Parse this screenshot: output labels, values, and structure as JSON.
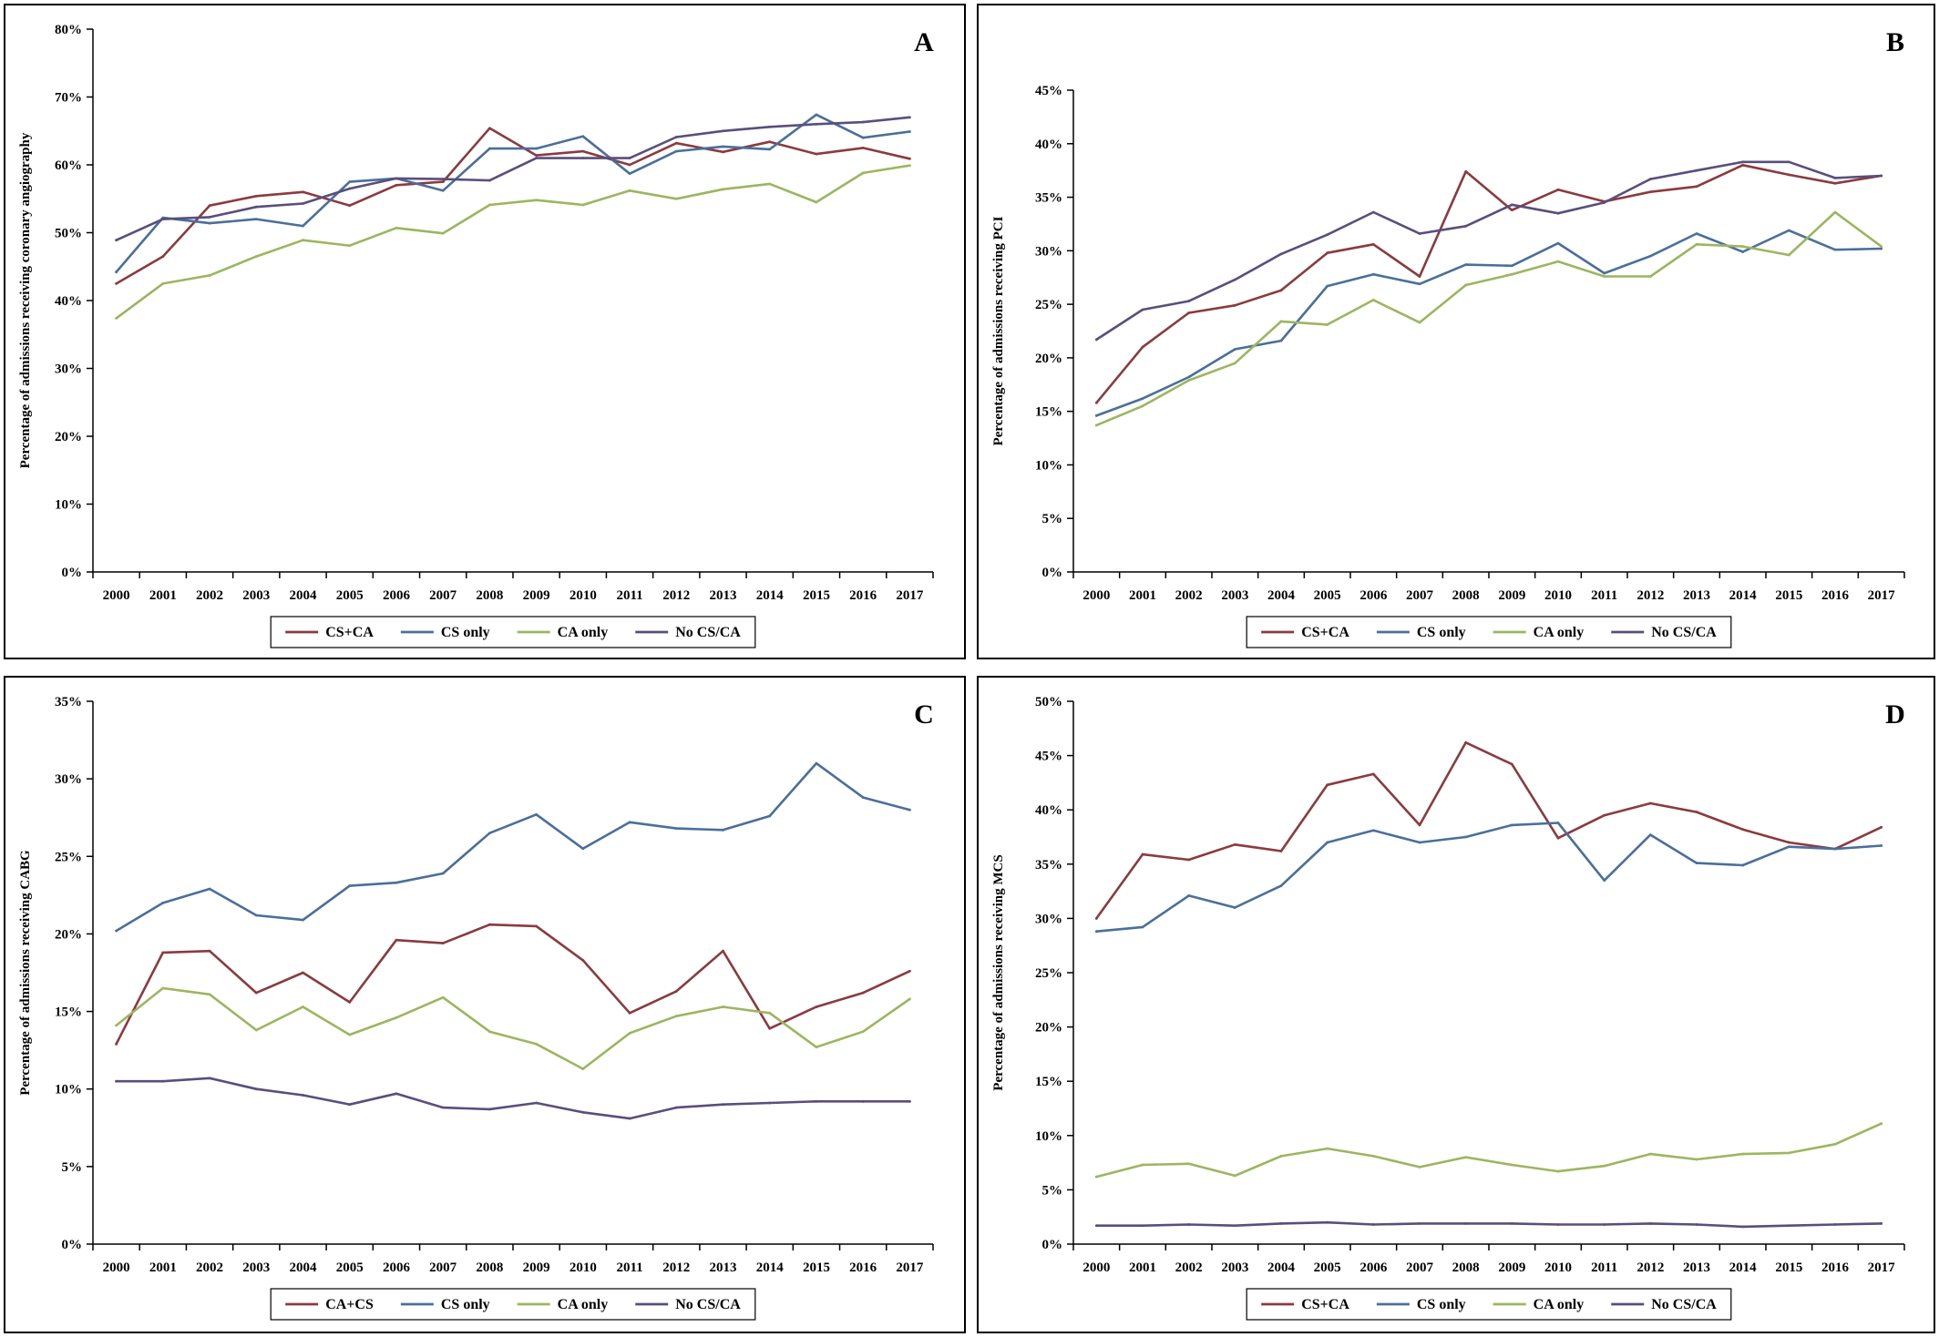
{
  "chart_data": [
    {
      "type": "line",
      "letter": "A",
      "ylabel": "Percentage of admissions receiving coronary angiography",
      "ylim": [
        0,
        80
      ],
      "ytick_step": 10,
      "ytick_labels": [
        "0%",
        "10%",
        "20%",
        "30%",
        "40%",
        "50%",
        "60%",
        "70%",
        "80%"
      ],
      "categories": [
        "2000",
        "2001",
        "2002",
        "2003",
        "2004",
        "2005",
        "2006",
        "2007",
        "2008",
        "2009",
        "2010",
        "2011",
        "2012",
        "2013",
        "2014",
        "2015",
        "2016",
        "2017"
      ],
      "legend": "bottom-center",
      "series": [
        {
          "name": "CS+CA",
          "color": "#8B3A3F",
          "values": [
            42.5,
            46.5,
            54,
            55.4,
            56,
            54,
            57,
            57.5,
            65.4,
            61.4,
            62,
            60,
            63.2,
            61.9,
            63.4,
            61.6,
            62.5,
            60.9
          ]
        },
        {
          "name": "CS only",
          "color": "#4A6F9A",
          "values": [
            44.2,
            52.2,
            51.4,
            52,
            51,
            57.5,
            58,
            56.2,
            62.4,
            62.4,
            64.2,
            58.7,
            62,
            62.7,
            62.3,
            67.4,
            64,
            64.9
          ]
        },
        {
          "name": "CA only",
          "color": "#9BB65E",
          "values": [
            37.4,
            42.5,
            43.7,
            46.5,
            48.9,
            48.1,
            50.7,
            49.9,
            54.1,
            54.8,
            54.1,
            56.2,
            55,
            56.4,
            57.2,
            54.5,
            58.8,
            59.9
          ]
        },
        {
          "name": "No CS/CA",
          "color": "#5A4E7C",
          "values": [
            48.9,
            52,
            52.3,
            53.8,
            54.3,
            56.5,
            58,
            57.9,
            57.7,
            61,
            61,
            61,
            64.1,
            65,
            65.6,
            66,
            66.3,
            67
          ]
        }
      ]
    },
    {
      "type": "line",
      "letter": "B",
      "ylabel": "Percentage of admissions receiving PCI",
      "ylim": [
        0,
        45
      ],
      "ytick_step": 5,
      "ytick_labels": [
        "0%",
        "5%",
        "10%",
        "15%",
        "20%",
        "25%",
        "30%",
        "35%",
        "40%",
        "45%"
      ],
      "categories": [
        "2000",
        "2001",
        "2002",
        "2003",
        "2004",
        "2005",
        "2006",
        "2007",
        "2008",
        "2009",
        "2010",
        "2011",
        "2012",
        "2013",
        "2014",
        "2015",
        "2016",
        "2017"
      ],
      "legend": "bottom-center",
      "series": [
        {
          "name": "CS+CA",
          "color": "#8B3A3F",
          "values": [
            15.8,
            21,
            24.2,
            24.9,
            26.3,
            29.8,
            30.6,
            27.6,
            37.4,
            33.8,
            35.7,
            34.6,
            35.5,
            36,
            38,
            37.1,
            36.3,
            37
          ]
        },
        {
          "name": "CS only",
          "color": "#4A6F9A",
          "values": [
            14.6,
            16.2,
            18.2,
            20.8,
            21.6,
            26.7,
            27.8,
            26.9,
            28.7,
            28.6,
            30.7,
            27.9,
            29.5,
            31.6,
            29.9,
            31.9,
            30.1,
            30.2
          ]
        },
        {
          "name": "CA only",
          "color": "#9BB65E",
          "values": [
            13.7,
            15.5,
            17.9,
            19.5,
            23.4,
            23.1,
            25.4,
            23.3,
            26.8,
            27.8,
            29,
            27.6,
            27.6,
            30.6,
            30.4,
            29.6,
            33.6,
            30.4
          ]
        },
        {
          "name": "No CS/CA",
          "color": "#5A4E7C",
          "values": [
            21.7,
            24.5,
            25.3,
            27.3,
            29.7,
            31.5,
            33.6,
            31.6,
            32.3,
            34.3,
            33.5,
            34.5,
            36.7,
            37.5,
            38.3,
            38.3,
            36.8,
            37
          ]
        }
      ]
    },
    {
      "type": "line",
      "letter": "C",
      "ylabel": "Percentage of admissions receiving CABG",
      "ylim": [
        0,
        35
      ],
      "ytick_step": 5,
      "ytick_labels": [
        "0%",
        "5%",
        "10%",
        "15%",
        "20%",
        "25%",
        "30%",
        "35%"
      ],
      "categories": [
        "2000",
        "2001",
        "2002",
        "2003",
        "2004",
        "2005",
        "2006",
        "2007",
        "2008",
        "2009",
        "2010",
        "2011",
        "2012",
        "2013",
        "2014",
        "2015",
        "2016",
        "2017"
      ],
      "legend": "bottom-center",
      "series": [
        {
          "name": "CA+CS",
          "color": "#8B3A3F",
          "values": [
            12.9,
            18.8,
            18.9,
            16.2,
            17.5,
            15.6,
            19.6,
            19.4,
            20.6,
            20.5,
            18.3,
            14.9,
            16.3,
            18.9,
            13.9,
            15.3,
            16.2,
            17.6
          ]
        },
        {
          "name": "CS only",
          "color": "#4A6F9A",
          "values": [
            20.2,
            22,
            22.9,
            21.2,
            20.9,
            23.1,
            23.3,
            23.9,
            26.5,
            27.7,
            25.5,
            27.2,
            26.8,
            26.7,
            27.6,
            31,
            28.8,
            28
          ]
        },
        {
          "name": "CA only",
          "color": "#9BB65E",
          "values": [
            14.1,
            16.5,
            16.1,
            13.8,
            15.3,
            13.5,
            14.6,
            15.9,
            13.7,
            12.9,
            11.3,
            13.6,
            14.7,
            15.3,
            14.9,
            12.7,
            13.7,
            15.8
          ]
        },
        {
          "name": "No CS/CA",
          "color": "#5A4E7C",
          "values": [
            10.5,
            10.5,
            10.7,
            10,
            9.6,
            9,
            9.7,
            8.8,
            8.7,
            9.1,
            8.5,
            8.1,
            8.8,
            9,
            9.1,
            9.2,
            9.2,
            9.2
          ]
        }
      ]
    },
    {
      "type": "line",
      "letter": "D",
      "ylabel": "Percentage of admissions receiving MCS",
      "ylim": [
        0,
        50
      ],
      "ytick_step": 5,
      "ytick_labels": [
        "0%",
        "5%",
        "10%",
        "15%",
        "20%",
        "25%",
        "30%",
        "35%",
        "40%",
        "45%",
        "50%"
      ],
      "categories": [
        "2000",
        "2001",
        "2002",
        "2003",
        "2004",
        "2005",
        "2006",
        "2007",
        "2008",
        "2009",
        "2010",
        "2011",
        "2012",
        "2013",
        "2014",
        "2015",
        "2016",
        "2017"
      ],
      "legend": "bottom-center",
      "series": [
        {
          "name": "CS+CA",
          "color": "#8B3A3F",
          "values": [
            30,
            35.9,
            35.4,
            36.8,
            36.2,
            42.3,
            43.3,
            38.6,
            46.2,
            44.2,
            37.4,
            39.5,
            40.6,
            39.8,
            38.2,
            37,
            36.4,
            38.4
          ]
        },
        {
          "name": "CS only",
          "color": "#4A6F9A",
          "values": [
            28.8,
            29.2,
            32.1,
            31,
            33,
            37,
            38.1,
            37,
            37.5,
            38.6,
            38.8,
            33.5,
            37.7,
            35.1,
            34.9,
            36.6,
            36.4,
            36.7
          ]
        },
        {
          "name": "CA only",
          "color": "#9BB65E",
          "values": [
            6.2,
            7.3,
            7.4,
            6.3,
            8.1,
            8.8,
            8.1,
            7.1,
            8,
            7.3,
            6.7,
            7.2,
            8.3,
            7.8,
            8.3,
            8.4,
            9.2,
            11.1
          ]
        },
        {
          "name": "No CS/CA",
          "color": "#5A4E7C",
          "values": [
            1.7,
            1.7,
            1.8,
            1.7,
            1.9,
            2,
            1.8,
            1.9,
            1.9,
            1.9,
            1.8,
            1.8,
            1.9,
            1.8,
            1.6,
            1.7,
            1.8,
            1.9
          ]
        }
      ]
    }
  ]
}
